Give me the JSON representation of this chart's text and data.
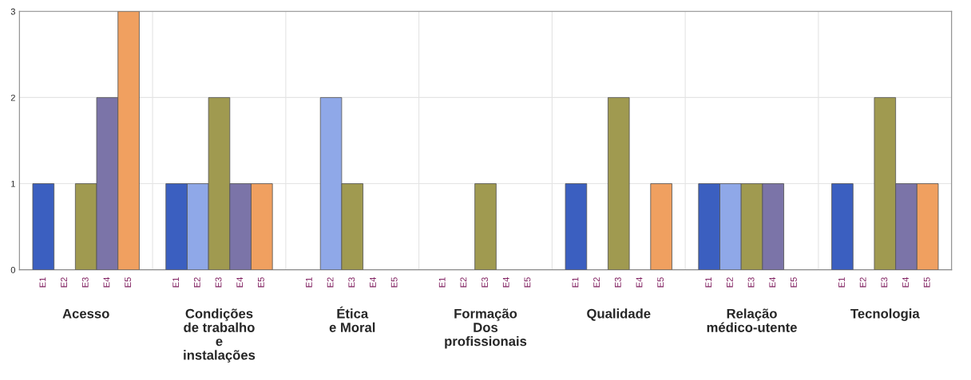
{
  "chart_data": {
    "type": "bar",
    "categories": [
      "Acesso",
      "Condições\nde trabalho\ne\ninstalações",
      "Ética\ne Moral",
      "Formação\nDos\nprofissionais",
      "Qualidade",
      "Relação\nmédico-utente",
      "Tecnologia"
    ],
    "series": [
      {
        "name": "E1",
        "color": "#3b5fc0",
        "values": [
          1,
          1,
          0,
          0,
          1,
          1,
          1
        ]
      },
      {
        "name": "E2",
        "color": "#8fa8e8",
        "values": [
          0,
          1,
          2,
          0,
          0,
          1,
          0
        ]
      },
      {
        "name": "E3",
        "color": "#a09a50",
        "values": [
          1,
          2,
          1,
          1,
          2,
          1,
          2
        ]
      },
      {
        "name": "E4",
        "color": "#7b74a8",
        "values": [
          2,
          1,
          0,
          0,
          0,
          1,
          1
        ]
      },
      {
        "name": "E5",
        "color": "#f0a060",
        "values": [
          3,
          1,
          0,
          0,
          1,
          0,
          1
        ]
      }
    ],
    "ylim": [
      0,
      3
    ],
    "yticks": [
      0,
      1,
      2,
      3
    ],
    "grid": true
  }
}
